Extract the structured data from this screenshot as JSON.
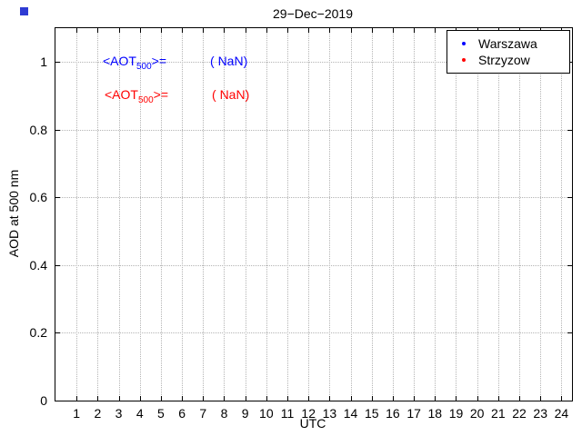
{
  "title": "29−Dec−2019",
  "axes": {
    "xlabel": "UTC",
    "ylabel": "AOD at 500 nm",
    "xlim": [
      0,
      24.5
    ],
    "ylim": [
      0,
      1.1
    ],
    "x_ticks": [
      1,
      2,
      3,
      4,
      5,
      6,
      7,
      8,
      9,
      10,
      11,
      12,
      13,
      14,
      15,
      16,
      17,
      18,
      19,
      20,
      21,
      22,
      23,
      24
    ],
    "y_ticks": [
      0,
      0.2,
      0.4,
      0.6,
      0.8,
      1
    ]
  },
  "legend": {
    "items": [
      {
        "label": "Warszawa",
        "color": "#0000ff"
      },
      {
        "label": "Strzyzow",
        "color": "#ff0000"
      }
    ]
  },
  "annotations": [
    {
      "label_prefix": "<AOT",
      "label_sub": "500",
      "label_suffix": ">=",
      "value": "( NaN)",
      "color": "#0000ff"
    },
    {
      "label_prefix": "<AOT",
      "label_sub": "500",
      "label_suffix": ">=",
      "value": "( NaN)",
      "color": "#ff0000"
    }
  ],
  "colors": {
    "warszawa": "#0000ff",
    "strzyzow": "#ff0000",
    "grid": "#b4b4b4",
    "axis": "#000000"
  },
  "chart_data": {
    "type": "scatter",
    "title": "29-Dec-2019",
    "xlabel": "UTC",
    "ylabel": "AOD at 500 nm",
    "xlim": [
      0,
      24.5
    ],
    "ylim": [
      0,
      1.1
    ],
    "x_ticks": [
      1,
      2,
      3,
      4,
      5,
      6,
      7,
      8,
      9,
      10,
      11,
      12,
      13,
      14,
      15,
      16,
      17,
      18,
      19,
      20,
      21,
      22,
      23,
      24
    ],
    "y_ticks": [
      0,
      0.2,
      0.4,
      0.6,
      0.8,
      1
    ],
    "grid": true,
    "legend_position": "top-right",
    "series": [
      {
        "name": "Warszawa",
        "color": "#0000ff",
        "marker": "point",
        "x": [],
        "y": [],
        "mean_aot500": "NaN"
      },
      {
        "name": "Strzyzow",
        "color": "#ff0000",
        "marker": "point",
        "x": [],
        "y": [],
        "mean_aot500": "NaN"
      }
    ],
    "annotations": [
      "<AOT500>= ( NaN)",
      "<AOT500>= ( NaN)"
    ]
  }
}
